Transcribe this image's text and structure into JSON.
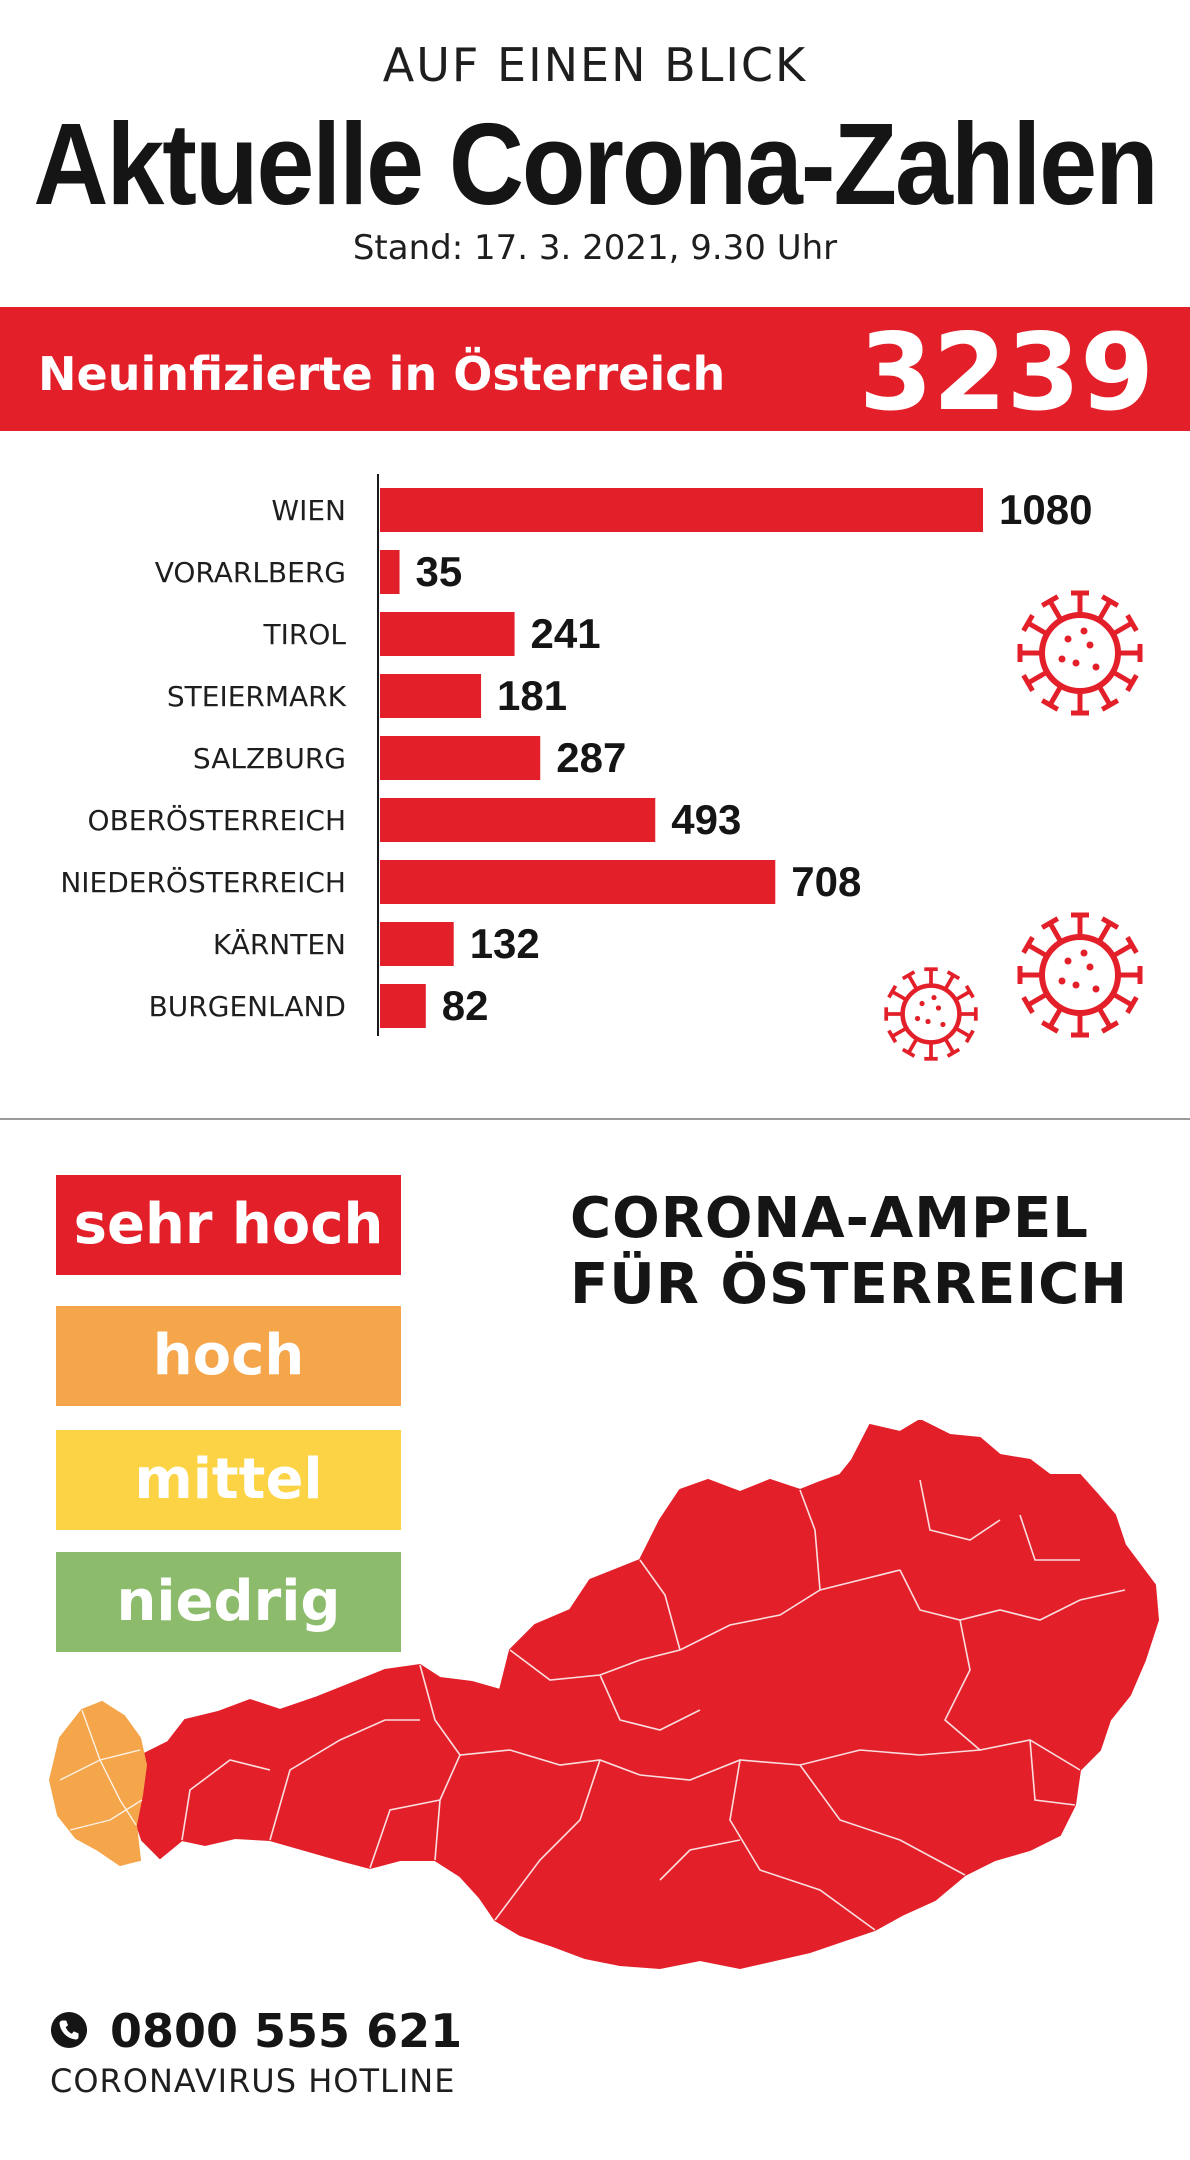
{
  "header": {
    "kicker": "AUF EINEN BLICK",
    "title": "Aktuelle Corona-Zahlen",
    "stand": "Stand: 17. 3. 2021, 9.30 Uhr"
  },
  "banner": {
    "label": "Neuinfizierte in Österreich",
    "total": "3239"
  },
  "chart_data": {
    "type": "bar",
    "orientation": "horizontal",
    "categories": [
      "WIEN",
      "VORARLBERG",
      "TIROL",
      "STEIERMARK",
      "SALZBURG",
      "OBERÖSTERREICH",
      "NIEDERÖSTERREICH",
      "KÄRNTEN",
      "BURGENLAND"
    ],
    "values": [
      1080,
      35,
      241,
      181,
      287,
      493,
      708,
      132,
      82
    ],
    "title": "Neuinfizierte in Österreich",
    "total": 3239,
    "xlim": [
      0,
      1080
    ],
    "grid": false,
    "bar_color": "#e3202a"
  },
  "ampel": {
    "title_line1": "CORONA-AMPEL",
    "title_line2": "FÜR ÖSTERREICH",
    "levels": [
      {
        "label": "sehr hoch",
        "color": "#e3202a"
      },
      {
        "label": "hoch",
        "color": "#f5a54a"
      },
      {
        "label": "mittel",
        "color": "#fdd346"
      },
      {
        "label": "niedrig",
        "color": "#8bbb6b"
      }
    ],
    "map_colors": {
      "vorarlberg": "#f5a54a",
      "rest": "#e3202a"
    }
  },
  "footer": {
    "phone_icon": "phone-icon",
    "phone": "0800 555 621",
    "hotline": "CORONAVIRUS HOTLINE"
  },
  "colors": {
    "accent": "#e3202a",
    "text": "#151515"
  }
}
